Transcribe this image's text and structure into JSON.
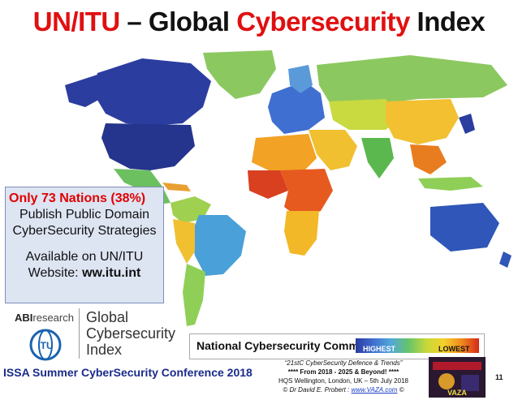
{
  "slide": {
    "title_pre": "UN/ITU",
    "title_dash": " – Global ",
    "title_mid": "Cybersecurity",
    "title_post": " Index"
  },
  "infobox": {
    "headline": "Only 73 Nations (38%)",
    "line1": "Publish Public Domain",
    "line2": "CyberSecurity  Strategies",
    "line3": "Available on UN/ITU",
    "line4_label": "Website: ",
    "line4_value": "ww.itu.int"
  },
  "logos": {
    "abi_strong": "ABI",
    "abi_light": "research",
    "gci_1": "Global",
    "gci_2": "Cybersecurity",
    "gci_3": "Index",
    "itu": "ITU"
  },
  "legend": {
    "title": "National Cybersecurity Commitment",
    "high": "HIGHEST",
    "low": "LOWEST",
    "colors": [
      "#2a3b9f",
      "#3f6fd0",
      "#52a7d8",
      "#67c36b",
      "#c5d93a",
      "#f5d12a",
      "#f28a1c",
      "#d6281a"
    ]
  },
  "footer": {
    "conference": "ISSA Summer CyberSecurity Conference 2018",
    "talk": "“21stC CyberSecurity Defence & Trends”",
    "period": "**** From 2018 - 2025 & Beyond! ****",
    "venue": "HQS Wellington, London, UK  – 5th July 2018",
    "author": "©  Dr David E. Probert  :",
    "site": "www.VAZA.com",
    "copy": "©",
    "thumb_text": "VAZA",
    "page": "11"
  }
}
